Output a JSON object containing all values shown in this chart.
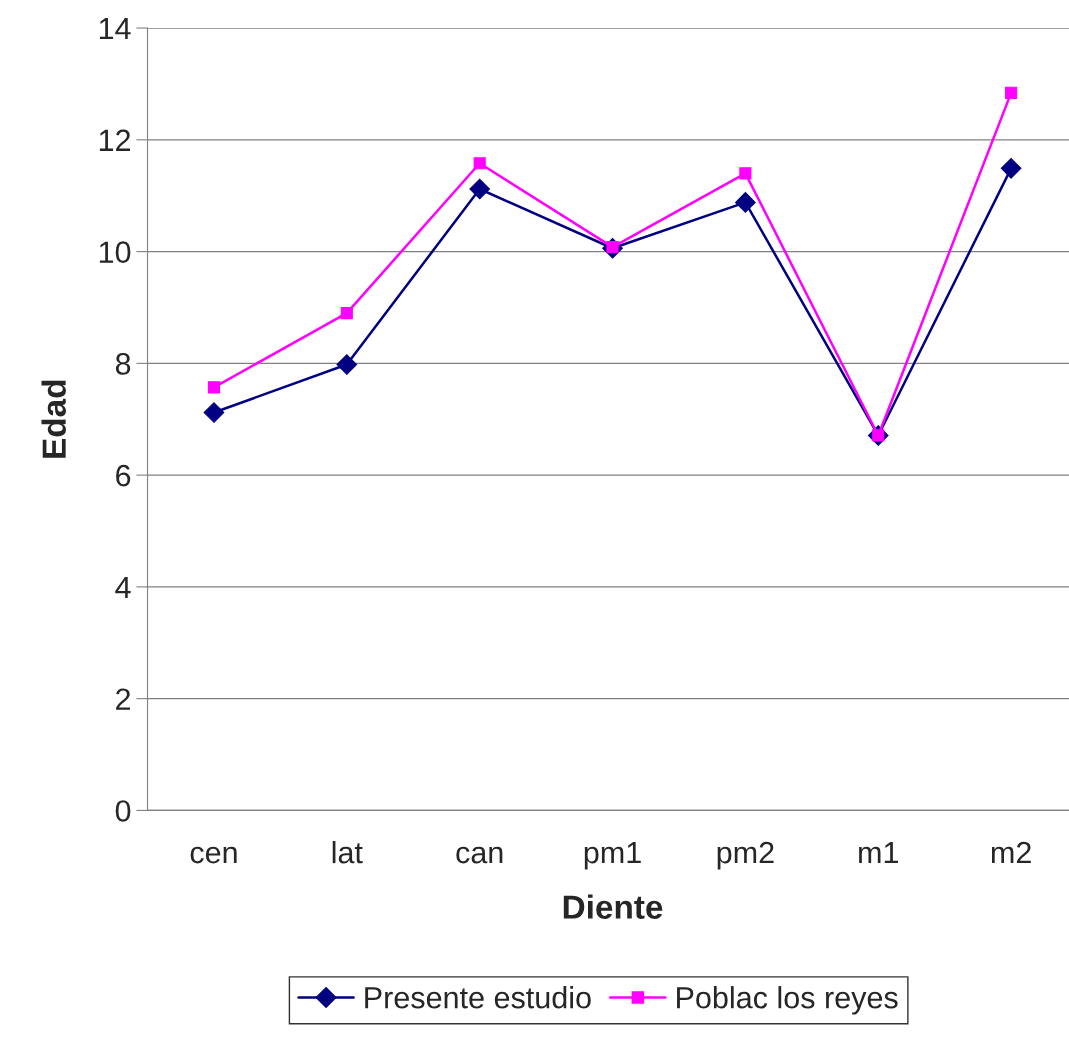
{
  "chart_data": {
    "type": "line",
    "xlabel": "Diente",
    "ylabel": "Edad",
    "categories": [
      "cen",
      "lat",
      "can",
      "pm1",
      "pm2",
      "m1",
      "m2"
    ],
    "series": [
      {
        "name": "Presente estudio",
        "color": "#000080",
        "marker": "diamond",
        "values": [
          7.12,
          7.98,
          11.12,
          10.06,
          10.88,
          6.71,
          11.49
        ]
      },
      {
        "name": "Poblac los reyes",
        "color": "#ff00ff",
        "marker": "square",
        "values": [
          7.57,
          8.9,
          11.58,
          10.08,
          11.4,
          6.71,
          12.84
        ]
      }
    ],
    "ylim": [
      0,
      14
    ],
    "yticks": [
      0,
      2,
      4,
      6,
      8,
      10,
      12,
      14
    ],
    "grid": "y",
    "legend": "bottom",
    "line_style": "solid"
  }
}
